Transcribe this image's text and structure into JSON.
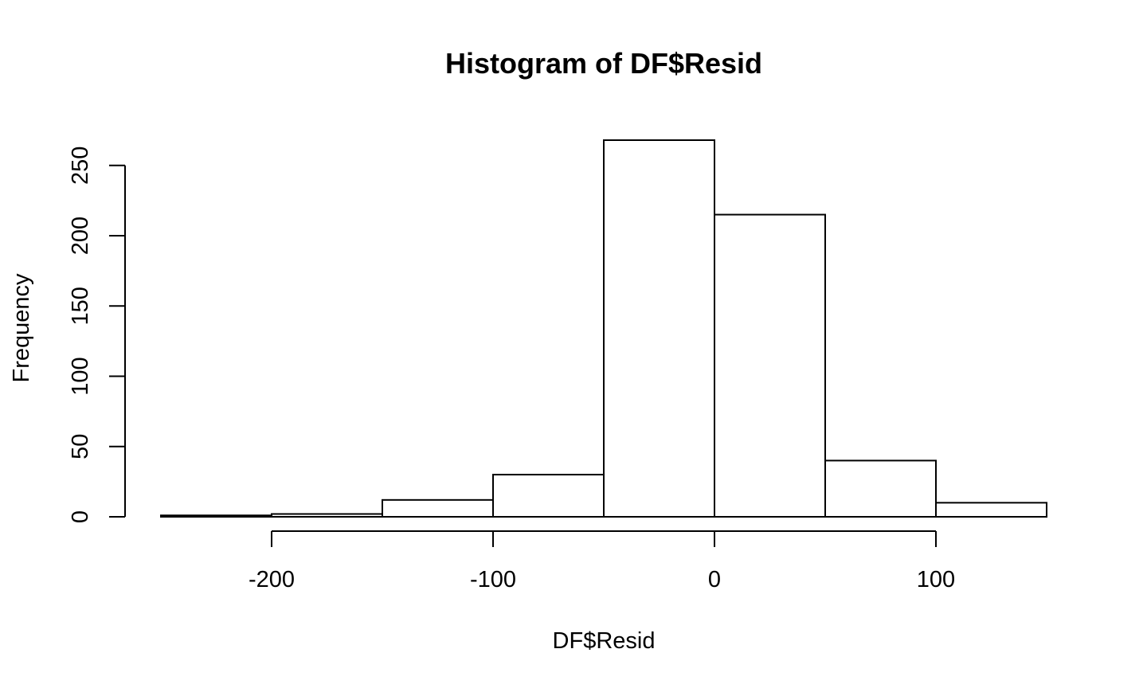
{
  "chart_data": {
    "type": "bar",
    "title": "Histogram of DF$Resid",
    "xlabel": "DF$Resid",
    "ylabel": "Frequency",
    "bin_edges": [
      -250,
      -200,
      -150,
      -100,
      -50,
      0,
      50,
      100,
      150
    ],
    "values": [
      1,
      2,
      12,
      30,
      268,
      215,
      40,
      10
    ],
    "xlim": [
      -250,
      150
    ],
    "ylim": [
      0,
      268
    ],
    "x_ticks": [
      -200,
      -100,
      0,
      100
    ],
    "y_ticks": [
      0,
      50,
      100,
      150,
      200,
      250
    ],
    "bar_fill": "#ffffff",
    "bar_stroke": "#000000",
    "grid": false,
    "legend": "none"
  }
}
